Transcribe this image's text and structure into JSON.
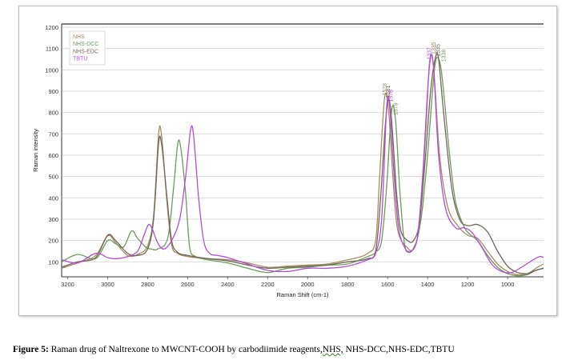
{
  "chart_data": {
    "type": "line",
    "xlabel": "Raman Shift (cm-1)",
    "ylabel": "Raman intensity",
    "xlim": [
      3230,
      820
    ],
    "ylim": [
      30,
      1215
    ],
    "x_reversed": true,
    "x_ticks": [
      3200,
      3000,
      2800,
      2600,
      2400,
      2200,
      2000,
      1800,
      1600,
      1400,
      1200,
      1000
    ],
    "y_ticks": [
      100,
      200,
      300,
      400,
      500,
      600,
      700,
      800,
      900,
      1000,
      1100,
      1200
    ],
    "grid": "horizontal",
    "legend": "top-left",
    "series": [
      {
        "name": "NHS",
        "color": "#a48c64",
        "points": [
          [
            3230,
            70
          ],
          [
            3150,
            95
          ],
          [
            3060,
            130
          ],
          [
            3000,
            222
          ],
          [
            2960,
            190
          ],
          [
            2900,
            130
          ],
          [
            2850,
            135
          ],
          [
            2800,
            175
          ],
          [
            2770,
            320
          ],
          [
            2745,
            700
          ],
          [
            2730,
            690
          ],
          [
            2705,
            400
          ],
          [
            2680,
            180
          ],
          [
            2650,
            140
          ],
          [
            2600,
            125
          ],
          [
            2500,
            115
          ],
          [
            2400,
            110
          ],
          [
            2300,
            95
          ],
          [
            2200,
            75
          ],
          [
            2100,
            80
          ],
          [
            2000,
            85
          ],
          [
            1900,
            90
          ],
          [
            1800,
            110
          ],
          [
            1750,
            120
          ],
          [
            1700,
            140
          ],
          [
            1660,
            200
          ],
          [
            1640,
            500
          ],
          [
            1615,
            870
          ],
          [
            1595,
            810
          ],
          [
            1575,
            520
          ],
          [
            1550,
            250
          ],
          [
            1500,
            165
          ],
          [
            1470,
            165
          ],
          [
            1440,
            280
          ],
          [
            1410,
            700
          ],
          [
            1390,
            1040
          ],
          [
            1370,
            1010
          ],
          [
            1340,
            600
          ],
          [
            1300,
            360
          ],
          [
            1250,
            270
          ],
          [
            1200,
            225
          ],
          [
            1150,
            210
          ],
          [
            1100,
            150
          ],
          [
            1050,
            90
          ],
          [
            1000,
            55
          ],
          [
            950,
            40
          ],
          [
            900,
            45
          ],
          [
            850,
            75
          ],
          [
            820,
            90
          ]
        ]
      },
      {
        "name": "NHS-DCC",
        "color": "#6e9a5e",
        "points": [
          [
            3230,
            100
          ],
          [
            3150,
            135
          ],
          [
            3060,
            115
          ],
          [
            3000,
            200
          ],
          [
            2960,
            185
          ],
          [
            2920,
            170
          ],
          [
            2880,
            245
          ],
          [
            2850,
            210
          ],
          [
            2810,
            170
          ],
          [
            2780,
            160
          ],
          [
            2750,
            160
          ],
          [
            2700,
            210
          ],
          [
            2670,
            450
          ],
          [
            2650,
            650
          ],
          [
            2635,
            640
          ],
          [
            2610,
            420
          ],
          [
            2590,
            170
          ],
          [
            2560,
            125
          ],
          [
            2500,
            110
          ],
          [
            2400,
            95
          ],
          [
            2300,
            70
          ],
          [
            2200,
            50
          ],
          [
            2100,
            70
          ],
          [
            2000,
            75
          ],
          [
            1900,
            85
          ],
          [
            1800,
            90
          ],
          [
            1700,
            125
          ],
          [
            1660,
            145
          ],
          [
            1630,
            200
          ],
          [
            1605,
            450
          ],
          [
            1580,
            810
          ],
          [
            1560,
            760
          ],
          [
            1540,
            450
          ],
          [
            1515,
            180
          ],
          [
            1490,
            150
          ],
          [
            1460,
            180
          ],
          [
            1430,
            320
          ],
          [
            1400,
            600
          ],
          [
            1365,
            1010
          ],
          [
            1340,
            1040
          ],
          [
            1320,
            900
          ],
          [
            1290,
            600
          ],
          [
            1260,
            380
          ],
          [
            1220,
            270
          ],
          [
            1190,
            230
          ],
          [
            1150,
            200
          ],
          [
            1100,
            130
          ],
          [
            1050,
            75
          ],
          [
            1000,
            45
          ],
          [
            950,
            35
          ],
          [
            900,
            40
          ],
          [
            860,
            60
          ],
          [
            820,
            70
          ]
        ]
      },
      {
        "name": "NHS-EDC",
        "color": "#70685a",
        "points": [
          [
            3230,
            75
          ],
          [
            3150,
            100
          ],
          [
            3060,
            120
          ],
          [
            3000,
            225
          ],
          [
            2960,
            200
          ],
          [
            2900,
            140
          ],
          [
            2850,
            130
          ],
          [
            2800,
            160
          ],
          [
            2770,
            300
          ],
          [
            2745,
            655
          ],
          [
            2730,
            650
          ],
          [
            2705,
            420
          ],
          [
            2680,
            200
          ],
          [
            2650,
            145
          ],
          [
            2600,
            130
          ],
          [
            2500,
            115
          ],
          [
            2400,
            105
          ],
          [
            2300,
            85
          ],
          [
            2200,
            70
          ],
          [
            2100,
            75
          ],
          [
            2000,
            80
          ],
          [
            1900,
            85
          ],
          [
            1800,
            100
          ],
          [
            1750,
            105
          ],
          [
            1700,
            115
          ],
          [
            1660,
            150
          ],
          [
            1635,
            400
          ],
          [
            1610,
            760
          ],
          [
            1592,
            860
          ],
          [
            1575,
            700
          ],
          [
            1555,
            420
          ],
          [
            1535,
            250
          ],
          [
            1500,
            200
          ],
          [
            1470,
            200
          ],
          [
            1440,
            290
          ],
          [
            1410,
            600
          ],
          [
            1385,
            900
          ],
          [
            1360,
            1060
          ],
          [
            1345,
            1050
          ],
          [
            1320,
            800
          ],
          [
            1280,
            450
          ],
          [
            1240,
            300
          ],
          [
            1200,
            270
          ],
          [
            1150,
            275
          ],
          [
            1100,
            240
          ],
          [
            1050,
            150
          ],
          [
            1000,
            80
          ],
          [
            950,
            50
          ],
          [
            900,
            45
          ],
          [
            860,
            60
          ],
          [
            820,
            70
          ]
        ]
      },
      {
        "name": "TBTU",
        "color": "#b04fd0",
        "points": [
          [
            3230,
            110
          ],
          [
            3150,
            95
          ],
          [
            3060,
            140
          ],
          [
            3000,
            120
          ],
          [
            2960,
            115
          ],
          [
            2900,
            125
          ],
          [
            2850,
            150
          ],
          [
            2820,
            220
          ],
          [
            2795,
            275
          ],
          [
            2775,
            250
          ],
          [
            2750,
            190
          ],
          [
            2720,
            160
          ],
          [
            2680,
            200
          ],
          [
            2640,
            300
          ],
          [
            2610,
            500
          ],
          [
            2585,
            720
          ],
          [
            2570,
            690
          ],
          [
            2545,
            400
          ],
          [
            2520,
            200
          ],
          [
            2490,
            140
          ],
          [
            2450,
            130
          ],
          [
            2400,
            120
          ],
          [
            2300,
            90
          ],
          [
            2200,
            60
          ],
          [
            2100,
            55
          ],
          [
            2000,
            70
          ],
          [
            1900,
            70
          ],
          [
            1800,
            80
          ],
          [
            1700,
            110
          ],
          [
            1660,
            140
          ],
          [
            1630,
            300
          ],
          [
            1605,
            820
          ],
          [
            1590,
            830
          ],
          [
            1570,
            540
          ],
          [
            1545,
            260
          ],
          [
            1510,
            160
          ],
          [
            1480,
            150
          ],
          [
            1450,
            220
          ],
          [
            1425,
            500
          ],
          [
            1400,
            900
          ],
          [
            1385,
            1060
          ],
          [
            1370,
            1010
          ],
          [
            1345,
            600
          ],
          [
            1310,
            350
          ],
          [
            1260,
            260
          ],
          [
            1220,
            260
          ],
          [
            1180,
            240
          ],
          [
            1130,
            170
          ],
          [
            1080,
            90
          ],
          [
            1030,
            55
          ],
          [
            980,
            50
          ],
          [
            930,
            75
          ],
          [
            880,
            105
          ],
          [
            840,
            125
          ],
          [
            820,
            120
          ]
        ]
      }
    ],
    "annotations": [
      {
        "text": "1578",
        "x": 1615,
        "y": 872,
        "color": "#a48c64"
      },
      {
        "text": "1581",
        "x": 1598,
        "y": 862,
        "color": "#70685a"
      },
      {
        "text": "1576",
        "x": 1585,
        "y": 842,
        "color": "#b04fd0"
      },
      {
        "text": "1579",
        "x": 1560,
        "y": 780,
        "color": "#6e9a5e"
      },
      {
        "text": "1337",
        "x": 1393,
        "y": 1040,
        "color": "#b04fd0"
      },
      {
        "text": "1335",
        "x": 1370,
        "y": 1065,
        "color": "#a48c64"
      },
      {
        "text": "1335",
        "x": 1348,
        "y": 1055,
        "color": "#70685a"
      },
      {
        "text": "1338",
        "x": 1320,
        "y": 1030,
        "color": "#6e9a5e"
      }
    ]
  },
  "caption": {
    "lead": "Figure 5:",
    "text": " Raman drug of Naltrexone to MWCNT-COOH by carbodiimide reagents,",
    "wavy": "NHS,",
    "tail": " NHS-DCC,NHS-EDC,TBTU"
  }
}
